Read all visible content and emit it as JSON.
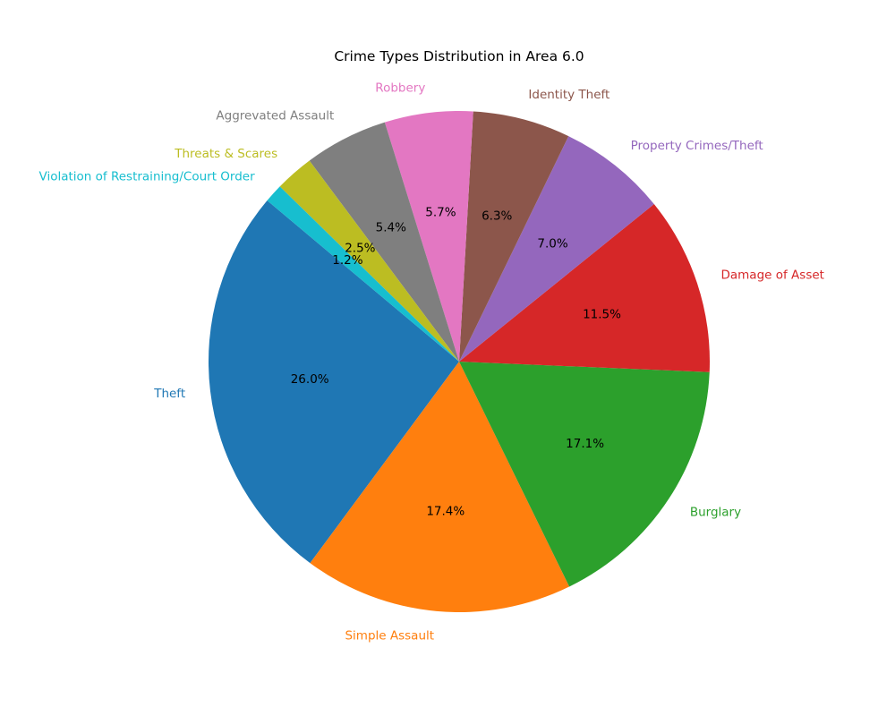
{
  "chart_data": {
    "type": "pie",
    "title": "Crime Types Distribution in Area 6.0",
    "start_angle_deg": 140,
    "direction": "counterclockwise",
    "slices": [
      {
        "label": "Theft",
        "value": 26.0,
        "pct_text": "26.0%",
        "color": "#1f77b4"
      },
      {
        "label": "Simple Assault",
        "value": 17.4,
        "pct_text": "17.4%",
        "color": "#ff7f0e"
      },
      {
        "label": "Burglary",
        "value": 17.1,
        "pct_text": "17.1%",
        "color": "#2ca02c"
      },
      {
        "label": "Damage of Asset",
        "value": 11.5,
        "pct_text": "11.5%",
        "color": "#d62728"
      },
      {
        "label": "Property Crimes/Theft",
        "value": 7.0,
        "pct_text": "7.0%",
        "color": "#9467bd"
      },
      {
        "label": "Identity Theft",
        "value": 6.3,
        "pct_text": "6.3%",
        "color": "#8c564b"
      },
      {
        "label": "Robbery",
        "value": 5.7,
        "pct_text": "5.7%",
        "color": "#e377c2"
      },
      {
        "label": "Aggrevated Assault",
        "value": 5.4,
        "pct_text": "5.4%",
        "color": "#7f7f7f"
      },
      {
        "label": "Threats & Scares",
        "value": 2.5,
        "pct_text": "2.5%",
        "color": "#bcbd22"
      },
      {
        "label": "Violation of Restraining/Court Order",
        "value": 1.2,
        "pct_text": "1.2%",
        "color": "#17becf"
      }
    ]
  }
}
